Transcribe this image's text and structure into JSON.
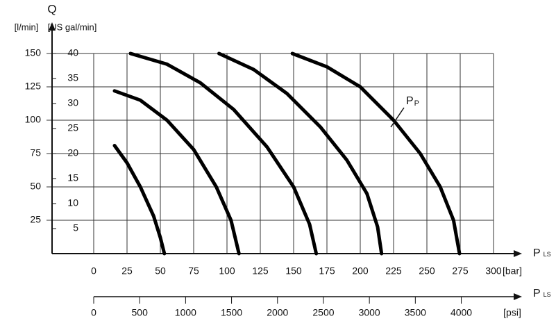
{
  "chart_data": {
    "type": "line",
    "y_label": "Q",
    "y_unit": "[l/min]",
    "y2_unit": "[US gal/min]",
    "x_label": "P",
    "x_label_sub": "LS",
    "x_unit": "[bar]",
    "x2_label": "P",
    "x2_label_sub": "LS",
    "x2_unit": "[psi]",
    "xlim": [
      0,
      300
    ],
    "xticks": [
      0,
      25,
      50,
      75,
      100,
      125,
      150,
      175,
      200,
      225,
      250,
      275,
      300
    ],
    "x2lim": [
      0,
      4351
    ],
    "x2ticks": [
      0,
      500,
      1000,
      1500,
      2000,
      2500,
      3000,
      3500,
      4000
    ],
    "ylim": [
      0,
      150
    ],
    "yticks": [
      25,
      50,
      75,
      100,
      125,
      150
    ],
    "y2lim": [
      0,
      40
    ],
    "y2ticks": [
      5,
      10,
      15,
      20,
      25,
      30,
      35,
      40
    ],
    "grid": true,
    "series": [
      {
        "color": "#000000",
        "x": [
          15.6,
          25,
          35,
          45,
          50,
          53
        ],
        "values": [
          81,
          68,
          50,
          28,
          12,
          0
        ]
      },
      {
        "color": "#000000",
        "x": [
          15.6,
          35,
          55,
          75,
          92,
          103,
          109
        ],
        "values": [
          122,
          115,
          100,
          78,
          50,
          25,
          0
        ]
      },
      {
        "color": "#000000",
        "x": [
          27.6,
          55,
          80,
          105,
          130,
          150,
          162,
          167
        ],
        "values": [
          150,
          142,
          128,
          108,
          80,
          50,
          22,
          0
        ]
      },
      {
        "color": "#000000",
        "x": [
          94,
          120,
          145,
          170,
          190,
          205,
          213,
          216
        ],
        "values": [
          150,
          138,
          120,
          95,
          70,
          45,
          20,
          0
        ]
      },
      {
        "color": "#000000",
        "x": [
          149,
          175,
          200,
          225,
          245,
          260,
          270,
          274.5
        ],
        "values": [
          150,
          140,
          125,
          100,
          75,
          50,
          25,
          0
        ]
      }
    ],
    "annotation": {
      "text": "P",
      "sub": "P"
    }
  }
}
